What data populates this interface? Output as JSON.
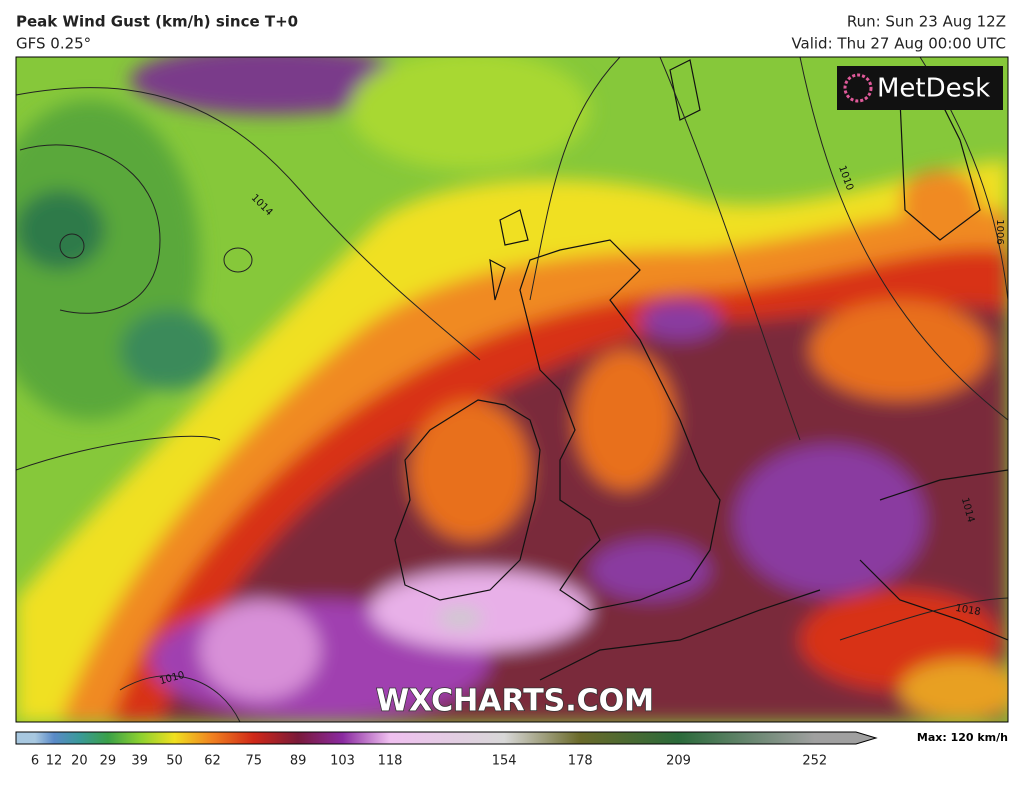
{
  "header": {
    "title": "Peak Wind Gust (km/h) since T+0",
    "model": "GFS 0.25°",
    "run": "Run: Sun 23 Aug 12Z",
    "valid": "Valid: Thu 27 Aug 00:00 UTC"
  },
  "logo": "MetDesk",
  "watermark": "WXCHARTS.COM",
  "map": {
    "isobar_labels": [
      "1014",
      "1010",
      "1010",
      "1006",
      "1014",
      "1018"
    ]
  },
  "colorbar": {
    "lim": [
      0,
      265
    ],
    "ticks": [
      6,
      12,
      20,
      29,
      39,
      50,
      62,
      75,
      89,
      103,
      118,
      154,
      178,
      209,
      252
    ],
    "colors": [
      "#a8c8e0",
      "#5a8ac8",
      "#3a9a9a",
      "#3aa048",
      "#8ad030",
      "#f0e020",
      "#f08020",
      "#d02818",
      "#7a1a3a",
      "#8a2aa0",
      "#f0c0f0",
      "#d8d8d8",
      "#6a6a2a",
      "#2a6a3a",
      "#a0a0a0"
    ],
    "max_label": "Max: 120 km/h"
  }
}
